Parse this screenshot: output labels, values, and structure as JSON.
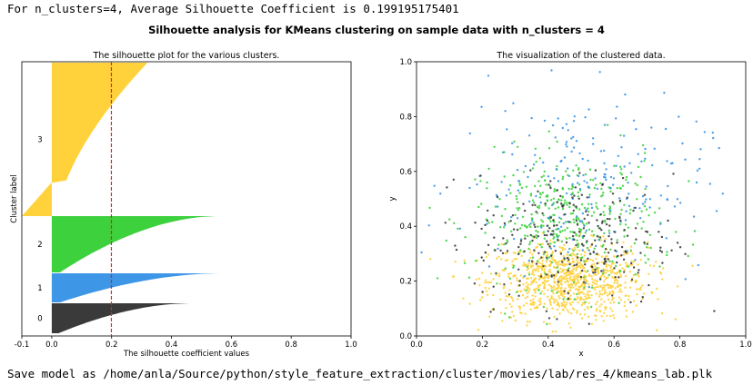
{
  "header": {
    "text": "For n_clusters=4, Average Silhouette Coefficient is 0.199195175401"
  },
  "footer": {
    "text": "Save model as /home/anla/Source/python/style_feature_extraction/cluster/movies/lab/res_4/kmeans_lab.plk"
  },
  "suptitle": "Silhouette analysis for KMeans clustering on sample data with n_clusters = 4",
  "colors": {
    "cluster0": "#3a3a3a",
    "cluster1": "#3d96e6",
    "cluster2": "#3ed13e",
    "cluster3": "#ffd23c",
    "avg_line": "#e02020"
  },
  "chart_data": [
    {
      "type": "area",
      "title": "The silhouette plot for the various clusters.",
      "xlabel": "The silhouette coefficient values",
      "ylabel": "Cluster label",
      "xlim": [
        -0.1,
        1.0
      ],
      "xticks": [
        "-0.1",
        "0.0",
        "0.2",
        "0.4",
        "0.6",
        "0.8",
        "1.0"
      ],
      "xtick_values": [
        -0.1,
        0.0,
        0.2,
        0.4,
        0.6,
        0.8,
        1.0
      ],
      "average_silhouette": 0.199195175401,
      "clusters": [
        {
          "label": "0",
          "size": 320,
          "max": 0.46,
          "min": 0.0
        },
        {
          "label": "1",
          "size": 320,
          "max": 0.56,
          "min": 0.0
        },
        {
          "label": "2",
          "size": 620,
          "max": 0.55,
          "min": 0.0
        },
        {
          "label": "3",
          "size": 1700,
          "max": 0.3,
          "min": -0.1
        }
      ]
    },
    {
      "type": "scatter",
      "title": "The visualization of the clustered data.",
      "xlabel": "x",
      "ylabel": "y",
      "xlim": [
        0.0,
        1.0
      ],
      "ylim": [
        0.0,
        1.0
      ],
      "xticks": [
        "0.0",
        "0.2",
        "0.4",
        "0.6",
        "0.8",
        "1.0"
      ],
      "yticks": [
        "0.0",
        "0.2",
        "0.4",
        "0.6",
        "0.8",
        "1.0"
      ],
      "series": [
        {
          "cluster": "0",
          "center": [
            0.48,
            0.35
          ],
          "spread": [
            0.15,
            0.12
          ],
          "count": 260
        },
        {
          "cluster": "1",
          "center": [
            0.5,
            0.55
          ],
          "spread": [
            0.19,
            0.16
          ],
          "count": 230
        },
        {
          "cluster": "2",
          "center": [
            0.46,
            0.42
          ],
          "spread": [
            0.14,
            0.12
          ],
          "count": 420
        },
        {
          "cluster": "3",
          "center": [
            0.46,
            0.2
          ],
          "spread": [
            0.12,
            0.07
          ],
          "count": 900
        }
      ]
    }
  ]
}
